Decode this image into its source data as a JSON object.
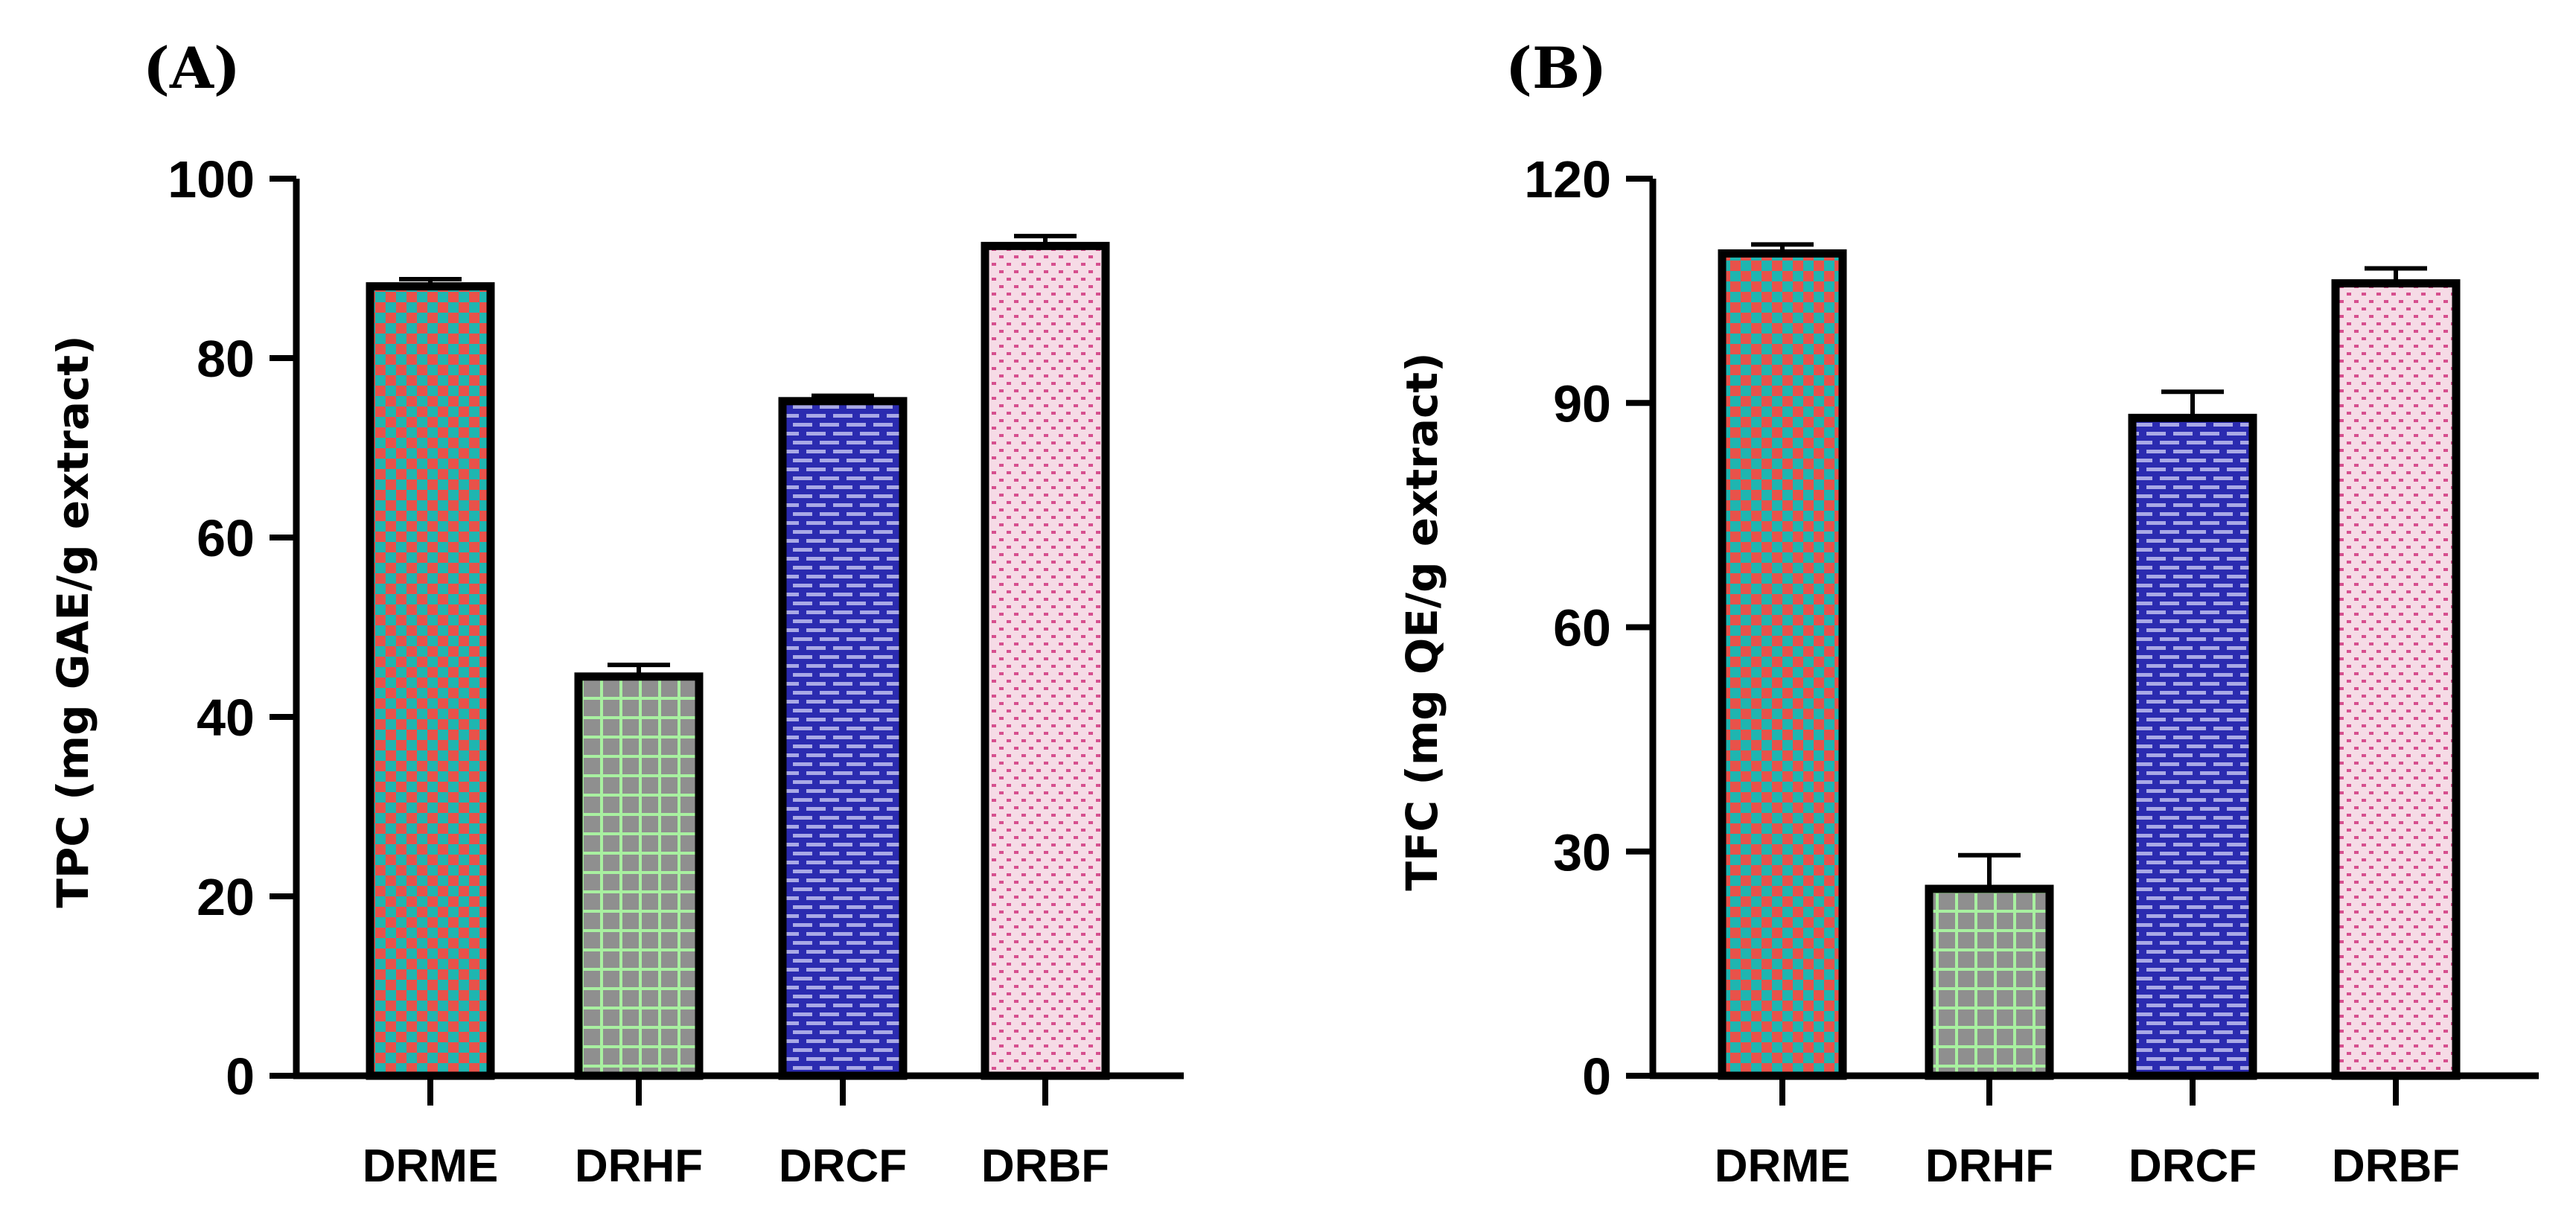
{
  "chart_data": [
    {
      "panel_label": "(A)",
      "type": "bar",
      "categories": [
        "DRME",
        "DRHF",
        "DRCF",
        "DRBF"
      ],
      "values": [
        88,
        44.5,
        75.2,
        92.5
      ],
      "errors": [
        0.8,
        1.3,
        0.6,
        1.1
      ],
      "ylabel": "TPC (mg GAE/g extract)",
      "xlabel": "",
      "ylim": [
        0,
        100
      ],
      "yticks": [
        "0",
        "20",
        "40",
        "60",
        "80",
        "100"
      ],
      "ytick_values": [
        0,
        20,
        40,
        60,
        80,
        100
      ],
      "fills": [
        "checker-red-teal",
        "grid-green-gray",
        "brick-blue",
        "dots-pink"
      ]
    },
    {
      "panel_label": "(B)",
      "type": "bar",
      "categories": [
        "DRME",
        "DRHF",
        "DRCF",
        "DRBF"
      ],
      "values": [
        110,
        25,
        88,
        106
      ],
      "errors": [
        1.2,
        4.5,
        3.5,
        2.0
      ],
      "ylabel": "TFC (mg QE/g extract)",
      "xlabel": "",
      "ylim": [
        0,
        120
      ],
      "yticks": [
        "0",
        "30",
        "60",
        "90",
        "120"
      ],
      "ytick_values": [
        0,
        30,
        60,
        90,
        120
      ],
      "fills": [
        "checker-red-teal",
        "grid-green-gray",
        "brick-blue",
        "dots-pink"
      ]
    }
  ],
  "colors": {
    "checker_a": "#e8524a",
    "checker_b": "#1fb5b0",
    "grid_bg": "#8f8f8f",
    "grid_line": "#a8f0a0",
    "brick_bg": "#2b2bb0",
    "brick_line": "#a9a9e6",
    "dots_bg": "#f6dbe6",
    "dots_fg": "#d64f8e",
    "stroke": "#000000"
  }
}
